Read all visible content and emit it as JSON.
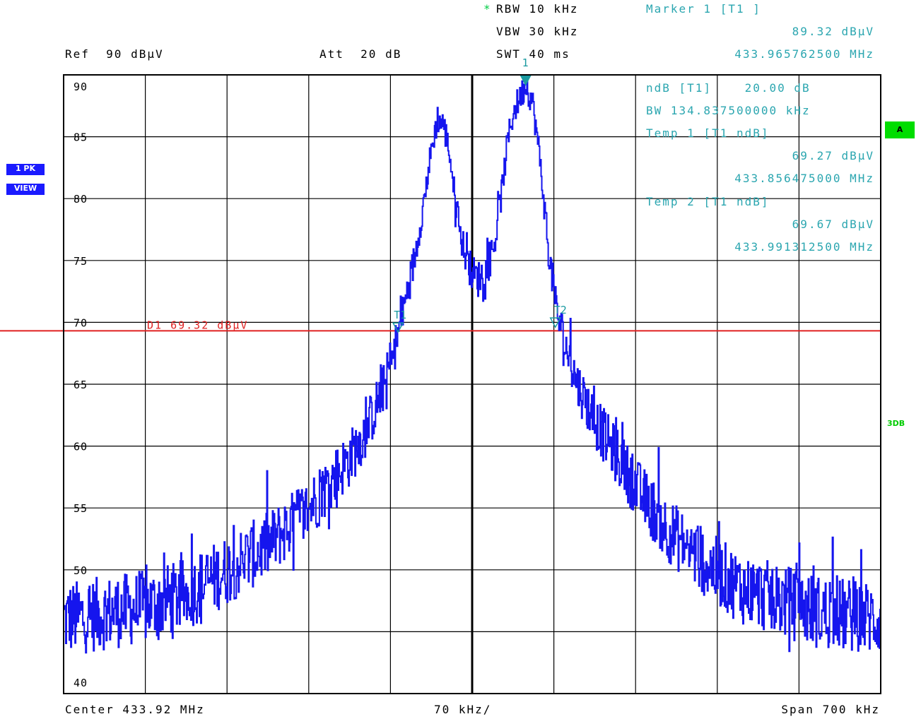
{
  "header": {
    "rbw_star": "*",
    "rbw": "RBW 10 kHz",
    "vbw": "VBW 30 kHz",
    "swt": "SWT 40 ms",
    "ref": "Ref  90 dBµV",
    "att": "Att  20 dB",
    "marker_title": "Marker 1 [T1 ]",
    "marker_level": "89.32 dBµV",
    "marker_freq": "433.965762500 MHz"
  },
  "ndb_box": {
    "line1": "ndB [T1]    20.00 dB",
    "line2": "BW 134.837500000 kHz",
    "line3": "Temp 1 [T1 ndB]",
    "line4": "69.27 dBµV",
    "line5": "433.856475000 MHz",
    "line6": "Temp 2 [T1 ndB]",
    "line7": "69.67 dBµV",
    "line8": "433.991312500 MHz"
  },
  "side": {
    "trace_mode": "1 PK",
    "trace_view": "VIEW",
    "screen_label": "A",
    "db_label": "3DB"
  },
  "footer": {
    "center": "Center 433.92 MHz",
    "div": "70 kHz/",
    "span": "Span 700 kHz"
  },
  "colors": {
    "trace": "#1515ee",
    "display_line": "#e02020",
    "marker": "#1a9aa0",
    "grid": "#000000"
  },
  "chart_data": {
    "type": "line",
    "xlabel": "",
    "ylabel": "",
    "x_unit": "MHz",
    "y_unit": "dBµV",
    "xlim": [
      433.57,
      434.27
    ],
    "ylim": [
      40,
      90
    ],
    "y_ticks": [
      90,
      85,
      80,
      75,
      70,
      65,
      60,
      55,
      50,
      40
    ],
    "grid": true,
    "display_line": {
      "label": "D1 69.32 dBµV",
      "value": 69.32
    },
    "markers": [
      {
        "label": "1",
        "x": 433.9658,
        "y": 89.32
      },
      {
        "label": "T1",
        "x": 433.8565,
        "y": 69.27
      },
      {
        "label": "T2",
        "x": 433.9913,
        "y": 69.67
      }
    ],
    "series": [
      {
        "x": [
          433.57,
          433.605,
          433.64,
          433.675,
          433.71,
          433.745,
          433.78,
          433.815,
          433.83,
          433.845,
          433.855,
          433.862,
          433.87,
          433.878,
          433.885,
          433.89,
          433.895,
          433.9,
          433.905,
          433.91,
          433.915,
          433.92,
          433.925,
          433.93,
          433.935,
          433.94,
          433.945,
          433.95,
          433.955,
          433.96,
          433.966,
          433.972,
          433.978,
          433.985,
          433.992,
          434.0,
          434.01,
          434.025,
          434.045,
          434.065,
          434.09,
          434.12,
          434.15,
          434.185,
          434.22,
          434.27
        ],
        "values": [
          46,
          46.5,
          47,
          48,
          50,
          52,
          55,
          59,
          61.5,
          65,
          68.5,
          71.5,
          75,
          79.5,
          84,
          86.5,
          86,
          84,
          80,
          77,
          75,
          74,
          73.5,
          74,
          75,
          77,
          80.5,
          84.5,
          87,
          88,
          89.3,
          87.5,
          83,
          76,
          71,
          68,
          65,
          62,
          59,
          56,
          53,
          50.5,
          48.5,
          47.5,
          46.5,
          46
        ]
      }
    ]
  }
}
